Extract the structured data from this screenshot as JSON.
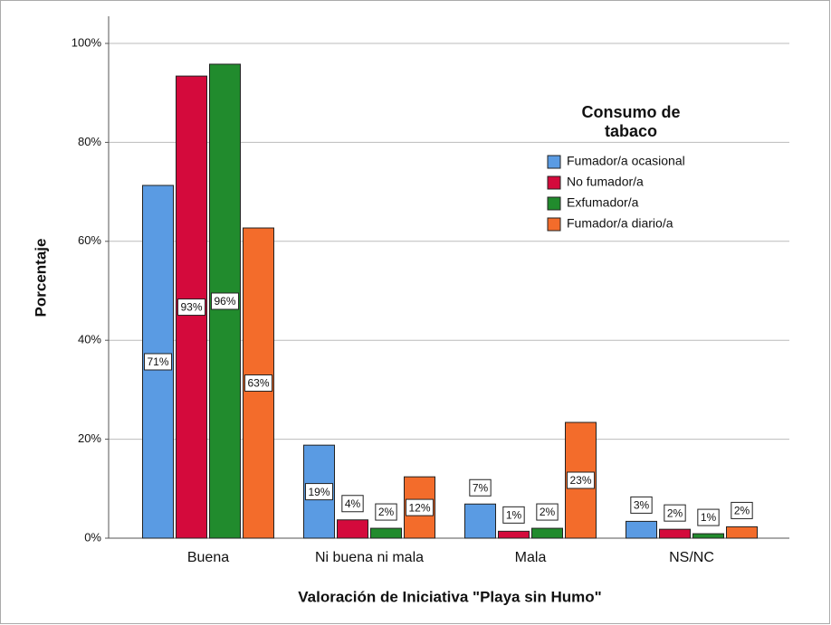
{
  "chart_data": {
    "type": "bar",
    "xlabel": "Valoración de Iniciativa \"Playa sin Humo\"",
    "ylabel": "Porcentaje",
    "categories": [
      "Buena",
      "Ni buena ni mala",
      "Mala",
      "NS/NC"
    ],
    "legend_title": "Consumo de tabaco",
    "legend_position": "upper right",
    "grid": true,
    "ylim": [
      0,
      100
    ],
    "yticks": [
      {
        "value": 0,
        "label": "0%"
      },
      {
        "value": 20,
        "label": "20%"
      },
      {
        "value": 40,
        "label": "40%"
      },
      {
        "value": 60,
        "label": "60%"
      },
      {
        "value": 80,
        "label": "80%"
      },
      {
        "value": 100,
        "label": "100%"
      }
    ],
    "series": [
      {
        "name": "Fumador/a ocasional",
        "color": "#5a9be3",
        "values": [
          71.3,
          18.8,
          6.9,
          3.4
        ],
        "value_labels": [
          "71%",
          "19%",
          "7%",
          "3%"
        ]
      },
      {
        "name": "No fumador/a",
        "color": "#d40a3c",
        "values": [
          93.4,
          3.7,
          1.4,
          1.8
        ],
        "value_labels": [
          "93%",
          "4%",
          "1%",
          "2%"
        ]
      },
      {
        "name": "Exfumador/a",
        "color": "#218b2d",
        "values": [
          95.8,
          2.0,
          2.0,
          0.9
        ],
        "value_labels": [
          "96%",
          "2%",
          "2%",
          "1%"
        ]
      },
      {
        "name": "Fumador/a diario/a",
        "color": "#f36c2b",
        "values": [
          62.7,
          12.4,
          23.4,
          2.3
        ],
        "value_labels": [
          "63%",
          "12%",
          "23%",
          "2%"
        ]
      }
    ]
  }
}
